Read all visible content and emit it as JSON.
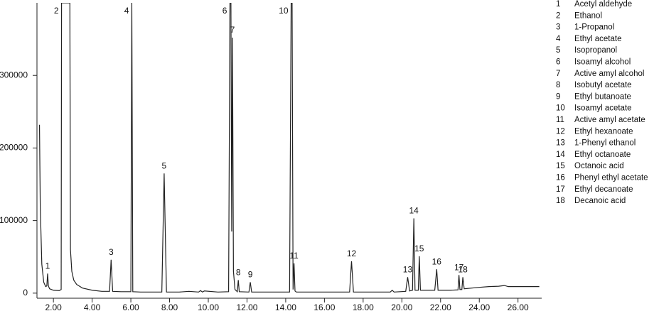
{
  "chart_data": {
    "type": "line",
    "color": "#222222",
    "xlim": [
      1.15,
      27.15
    ],
    "ylim": [
      -7000,
      400000
    ],
    "xticks": [
      {
        "value": 2,
        "label": "2.00"
      },
      {
        "value": 4,
        "label": "4.00"
      },
      {
        "value": 6,
        "label": "6.00"
      },
      {
        "value": 8,
        "label": "8.00"
      },
      {
        "value": 10,
        "label": "10.00"
      },
      {
        "value": 12,
        "label": "12.00"
      },
      {
        "value": 14,
        "label": "14.00"
      },
      {
        "value": 16,
        "label": "16.00"
      },
      {
        "value": 18,
        "label": "18.00"
      },
      {
        "value": 20,
        "label": "20.00"
      },
      {
        "value": 22,
        "label": "22.00"
      },
      {
        "value": 24,
        "label": "24.00"
      },
      {
        "value": 26,
        "label": "26.00"
      }
    ],
    "yticks": [
      0,
      100000,
      200000,
      300000
    ],
    "x": [
      1.28,
      1.32,
      1.4,
      1.5,
      1.6,
      1.66,
      1.7,
      1.74,
      1.8,
      2.0,
      2.3,
      2.4,
      2.42,
      2.85,
      2.88,
      2.95,
      3.05,
      3.2,
      3.5,
      4.0,
      4.5,
      4.9,
      4.98,
      5.06,
      5.5,
      6.0,
      6.05,
      6.1,
      6.5,
      7.0,
      7.6,
      7.72,
      7.84,
      8.5,
      9.0,
      9.5,
      9.6,
      9.7,
      9.8,
      10.5,
      11.05,
      11.12,
      11.17,
      11.21,
      11.25,
      11.3,
      11.38,
      11.5,
      11.55,
      11.6,
      12.1,
      12.17,
      12.24,
      13.5,
      14.2,
      14.28,
      14.33,
      14.38,
      14.43,
      14.48,
      14.55,
      15.5,
      17.3,
      17.4,
      17.5,
      19.4,
      19.5,
      19.6,
      20.2,
      20.3,
      20.4,
      20.55,
      20.62,
      20.68,
      20.85,
      20.9,
      20.96,
      21.7,
      21.8,
      21.87,
      22.5,
      22.9,
      22.95,
      23.0,
      23.1,
      23.15,
      23.22,
      24.0,
      24.5,
      25.0,
      25.3,
      25.5,
      26.0,
      27.1
    ],
    "values": [
      232000,
      120000,
      40000,
      15000,
      9000,
      10000,
      27000,
      10000,
      6000,
      4000,
      3500,
      5000,
      400000,
      400000,
      60000,
      30000,
      18000,
      12000,
      7000,
      4000,
      2500,
      2500,
      46000,
      2500,
      2000,
      2000,
      400000,
      2000,
      1500,
      1500,
      1500,
      165000,
      1500,
      1500,
      2500,
      1500,
      3500,
      1500,
      3000,
      1500,
      2000,
      400000,
      400000,
      85000,
      352000,
      30000,
      5000,
      2000,
      18000,
      2000,
      1500,
      15000,
      1500,
      1500,
      1500,
      400000,
      400000,
      5000,
      41000,
      3000,
      1500,
      1500,
      1500,
      44000,
      1500,
      1500,
      4000,
      1500,
      2500,
      22000,
      3000,
      4000,
      103000,
      4000,
      4000,
      51000,
      4000,
      4000,
      33000,
      4000,
      4000,
      4500,
      25000,
      5000,
      5000,
      22000,
      6000,
      8000,
      9000,
      9500,
      10500,
      9000,
      9000,
      9000
    ],
    "peaks": [
      {
        "number": "1",
        "name": "Acetyl aldehyde",
        "retention_time": 1.7
      },
      {
        "number": "2",
        "name": "Ethanol",
        "retention_time": 2.42
      },
      {
        "number": "3",
        "name": "1-Propanol",
        "retention_time": 4.98
      },
      {
        "number": "4",
        "name": "Ethyl acetate",
        "retention_time": 6.05
      },
      {
        "number": "5",
        "name": "Isopropanol",
        "retention_time": 7.72
      },
      {
        "number": "6",
        "name": "Isoamyl alcohol",
        "retention_time": 11.12
      },
      {
        "number": "7",
        "name": "Active amyl alcohol",
        "retention_time": 11.25
      },
      {
        "number": "8",
        "name": "Isobutyl acetate",
        "retention_time": 11.55
      },
      {
        "number": "9",
        "name": "Ethyl butanoate",
        "retention_time": 12.17
      },
      {
        "number": "10",
        "name": "Isoamyl acetate",
        "retention_time": 14.28
      },
      {
        "number": "11",
        "name": "Active amyl acetate",
        "retention_time": 14.43
      },
      {
        "number": "12",
        "name": "Ethyl hexanoate",
        "retention_time": 17.4
      },
      {
        "number": "13",
        "name": "1-Phenyl ethanol",
        "retention_time": 20.3
      },
      {
        "number": "14",
        "name": "Ethyl octanoate",
        "retention_time": 20.62
      },
      {
        "number": "15",
        "name": "Octanoic acid",
        "retention_time": 20.9
      },
      {
        "number": "16",
        "name": "Phenyl ethyl acetate",
        "retention_time": 21.8
      },
      {
        "number": "17",
        "name": "Ethyl decanoate",
        "retention_time": 22.95
      },
      {
        "number": "18",
        "name": "Decanoic acid",
        "retention_time": 23.15
      }
    ]
  }
}
